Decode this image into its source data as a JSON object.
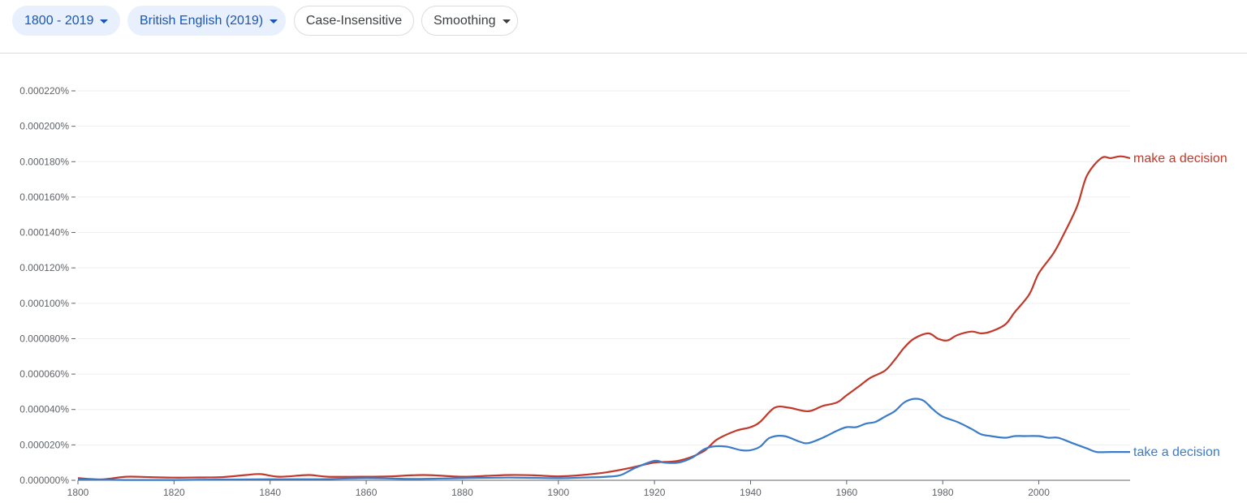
{
  "toolbar": {
    "range_label": "1800 - 2019",
    "corpus_label": "British English (2019)",
    "case_label": "Case-Insensitive",
    "smoothing_label": "Smoothing",
    "caret_icon": "caret-down-icon",
    "active_color": "#1a56b5",
    "active_bg": "#e8f0fe"
  },
  "chart_data": {
    "type": "line",
    "xlim": [
      1800,
      2019
    ],
    "ylim": [
      0,
      0.00022
    ],
    "x_ticks": [
      1800,
      1820,
      1840,
      1860,
      1880,
      1900,
      1920,
      1940,
      1960,
      1980,
      2000
    ],
    "x_tick_labels": [
      "1800",
      "1820",
      "1840",
      "1860",
      "1880",
      "1900",
      "1920",
      "1940",
      "1960",
      "1980",
      "2000"
    ],
    "y_ticks": [
      0,
      2e-05,
      4e-05,
      6e-05,
      8e-05,
      0.0001,
      0.00012,
      0.00014,
      0.00016,
      0.00018,
      0.0002,
      0.00022
    ],
    "y_tick_labels": [
      "0.000000%",
      "0.000020%",
      "0.000040%",
      "0.000060%",
      "0.000080%",
      "0.000100%",
      "0.000120%",
      "0.000140%",
      "0.000160%",
      "0.000180%",
      "0.000200%",
      "0.000220%"
    ],
    "grid": true,
    "series": [
      {
        "name": "make a decision",
        "color": "#c0392b",
        "points": [
          [
            1800,
            1.2e-06
          ],
          [
            1805,
            5e-07
          ],
          [
            1810,
            2e-06
          ],
          [
            1815,
            1.8e-06
          ],
          [
            1820,
            1.5e-06
          ],
          [
            1825,
            1.6e-06
          ],
          [
            1830,
            1.8e-06
          ],
          [
            1835,
            3e-06
          ],
          [
            1838,
            3.5e-06
          ],
          [
            1842,
            2e-06
          ],
          [
            1848,
            3e-06
          ],
          [
            1852,
            2e-06
          ],
          [
            1860,
            2e-06
          ],
          [
            1865,
            2.2e-06
          ],
          [
            1872,
            3e-06
          ],
          [
            1880,
            2e-06
          ],
          [
            1885,
            2.5e-06
          ],
          [
            1890,
            3e-06
          ],
          [
            1895,
            2.8e-06
          ],
          [
            1900,
            2.2e-06
          ],
          [
            1905,
            3e-06
          ],
          [
            1910,
            4.5e-06
          ],
          [
            1915,
            7e-06
          ],
          [
            1920,
            1e-05
          ],
          [
            1925,
            1.1e-05
          ],
          [
            1930,
            1.6e-05
          ],
          [
            1933,
            2.3e-05
          ],
          [
            1937,
            2.8e-05
          ],
          [
            1940,
            3e-05
          ],
          [
            1942,
            3.3e-05
          ],
          [
            1945,
            4.1e-05
          ],
          [
            1948,
            4.1e-05
          ],
          [
            1952,
            3.9e-05
          ],
          [
            1955,
            4.2e-05
          ],
          [
            1958,
            4.4e-05
          ],
          [
            1960,
            4.8e-05
          ],
          [
            1963,
            5.4e-05
          ],
          [
            1965,
            5.8e-05
          ],
          [
            1968,
            6.2e-05
          ],
          [
            1970,
            6.8e-05
          ],
          [
            1972,
            7.5e-05
          ],
          [
            1974,
            8e-05
          ],
          [
            1977,
            8.3e-05
          ],
          [
            1979,
            8e-05
          ],
          [
            1981,
            7.9e-05
          ],
          [
            1983,
            8.2e-05
          ],
          [
            1986,
            8.4e-05
          ],
          [
            1988,
            8.3e-05
          ],
          [
            1990,
            8.4e-05
          ],
          [
            1993,
            8.8e-05
          ],
          [
            1995,
            9.5e-05
          ],
          [
            1998,
            0.000105
          ],
          [
            2000,
            0.000117
          ],
          [
            2003,
            0.000128
          ],
          [
            2005,
            0.000138
          ],
          [
            2008,
            0.000155
          ],
          [
            2010,
            0.000172
          ],
          [
            2013,
            0.000182
          ],
          [
            2015,
            0.000182
          ],
          [
            2017,
            0.000183
          ],
          [
            2019,
            0.000182
          ]
        ]
      },
      {
        "name": "take a decision",
        "color": "#3a7cc7",
        "points": [
          [
            1800,
            5e-07
          ],
          [
            1810,
            2e-07
          ],
          [
            1820,
            2e-07
          ],
          [
            1830,
            4e-07
          ],
          [
            1840,
            6e-07
          ],
          [
            1850,
            6e-07
          ],
          [
            1860,
            1.2e-06
          ],
          [
            1870,
            8e-07
          ],
          [
            1880,
            1.2e-06
          ],
          [
            1890,
            1.5e-06
          ],
          [
            1900,
            1.2e-06
          ],
          [
            1905,
            1.5e-06
          ],
          [
            1910,
            2e-06
          ],
          [
            1913,
            3e-06
          ],
          [
            1916,
            7e-06
          ],
          [
            1920,
            1.1e-05
          ],
          [
            1922,
            1e-05
          ],
          [
            1925,
            1e-05
          ],
          [
            1928,
            1.3e-05
          ],
          [
            1930,
            1.7e-05
          ],
          [
            1932,
            1.9e-05
          ],
          [
            1935,
            1.9e-05
          ],
          [
            1938,
            1.7e-05
          ],
          [
            1940,
            1.7e-05
          ],
          [
            1942,
            1.9e-05
          ],
          [
            1944,
            2.4e-05
          ],
          [
            1947,
            2.5e-05
          ],
          [
            1950,
            2.2e-05
          ],
          [
            1952,
            2.1e-05
          ],
          [
            1955,
            2.4e-05
          ],
          [
            1958,
            2.8e-05
          ],
          [
            1960,
            3e-05
          ],
          [
            1962,
            3e-05
          ],
          [
            1964,
            3.2e-05
          ],
          [
            1966,
            3.3e-05
          ],
          [
            1968,
            3.6e-05
          ],
          [
            1970,
            3.9e-05
          ],
          [
            1972,
            4.4e-05
          ],
          [
            1974,
            4.6e-05
          ],
          [
            1976,
            4.5e-05
          ],
          [
            1978,
            4e-05
          ],
          [
            1980,
            3.6e-05
          ],
          [
            1983,
            3.3e-05
          ],
          [
            1986,
            2.9e-05
          ],
          [
            1988,
            2.6e-05
          ],
          [
            1990,
            2.5e-05
          ],
          [
            1993,
            2.4e-05
          ],
          [
            1995,
            2.5e-05
          ],
          [
            1997,
            2.5e-05
          ],
          [
            2000,
            2.5e-05
          ],
          [
            2002,
            2.4e-05
          ],
          [
            2004,
            2.4e-05
          ],
          [
            2007,
            2.1e-05
          ],
          [
            2010,
            1.8e-05
          ],
          [
            2012,
            1.6e-05
          ],
          [
            2015,
            1.6e-05
          ],
          [
            2019,
            1.6e-05
          ]
        ]
      }
    ]
  }
}
